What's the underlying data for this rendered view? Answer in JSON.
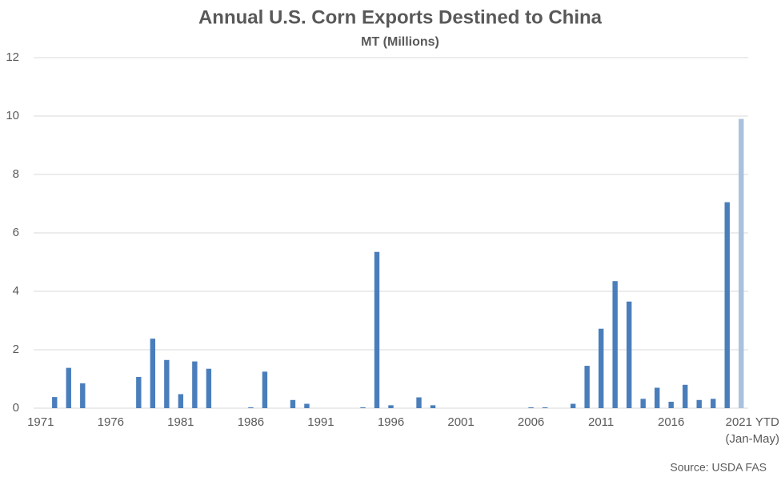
{
  "chart_data": {
    "type": "bar",
    "title": "Annual U.S. Corn Exports Destined to China",
    "subtitle": "MT (Millions)",
    "source": "Source: USDA FAS",
    "categories": [
      "1971",
      null,
      null,
      null,
      null,
      "1976",
      null,
      null,
      null,
      null,
      "1981",
      null,
      null,
      null,
      null,
      "1986",
      null,
      null,
      null,
      null,
      "1991",
      null,
      null,
      null,
      null,
      "1996",
      null,
      null,
      null,
      null,
      "2001",
      null,
      null,
      null,
      null,
      "2006",
      null,
      null,
      null,
      null,
      "2011",
      null,
      null,
      null,
      null,
      "2016",
      null,
      null,
      null,
      null,
      "2021 YTD\n(Jan-May)"
    ],
    "values": [
      0,
      0.38,
      1.38,
      0.85,
      0,
      0,
      0,
      1.07,
      2.38,
      1.65,
      0.48,
      1.6,
      1.35,
      0,
      0,
      0.03,
      1.25,
      0,
      0.28,
      0.15,
      0,
      0,
      0,
      0.03,
      5.35,
      0.1,
      0,
      0.37,
      0.1,
      0,
      0,
      0,
      0,
      0,
      0,
      0.03,
      0.03,
      0,
      0.15,
      1.45,
      2.72,
      4.35,
      3.65,
      0.32,
      0.7,
      0.22,
      0.8,
      0.28,
      0.32,
      7.05,
      9.9
    ],
    "colors": [
      "#4a7ebb",
      "#4a7ebb",
      "#4a7ebb",
      "#4a7ebb",
      "#4a7ebb",
      "#4a7ebb",
      "#4a7ebb",
      "#4a7ebb",
      "#4a7ebb",
      "#4a7ebb",
      "#4a7ebb",
      "#4a7ebb",
      "#4a7ebb",
      "#4a7ebb",
      "#4a7ebb",
      "#4a7ebb",
      "#4a7ebb",
      "#4a7ebb",
      "#4a7ebb",
      "#4a7ebb",
      "#4a7ebb",
      "#4a7ebb",
      "#4a7ebb",
      "#4a7ebb",
      "#4a7ebb",
      "#4a7ebb",
      "#4a7ebb",
      "#4a7ebb",
      "#4a7ebb",
      "#4a7ebb",
      "#4a7ebb",
      "#4a7ebb",
      "#4a7ebb",
      "#4a7ebb",
      "#4a7ebb",
      "#4a7ebb",
      "#4a7ebb",
      "#4a7ebb",
      "#4a7ebb",
      "#4a7ebb",
      "#4a7ebb",
      "#4a7ebb",
      "#4a7ebb",
      "#4a7ebb",
      "#4a7ebb",
      "#4a7ebb",
      "#4a7ebb",
      "#4a7ebb",
      "#4a7ebb",
      "#4a7ebb",
      "#a9c1de"
    ],
    "ylim": [
      0,
      12
    ],
    "yticks": [
      0,
      2,
      4,
      6,
      8,
      10,
      12
    ],
    "grid": true
  }
}
